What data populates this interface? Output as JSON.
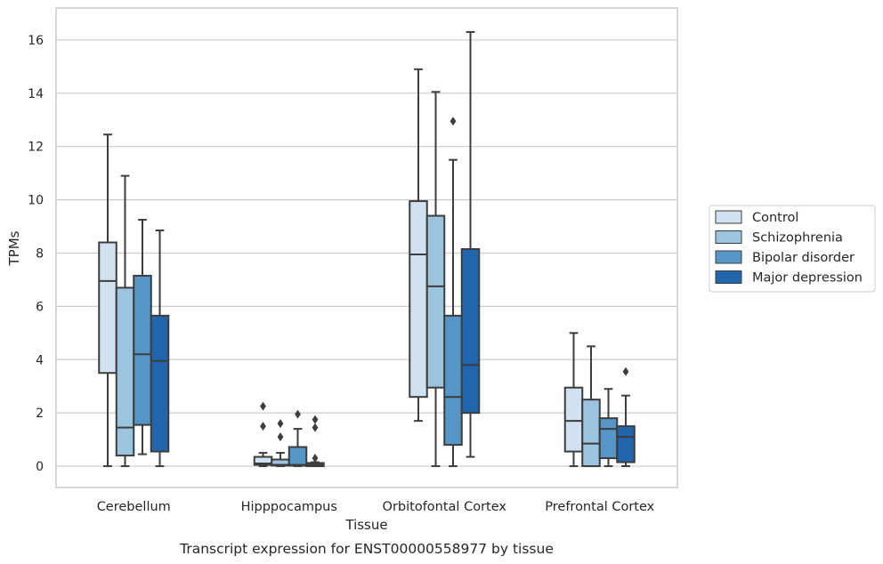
{
  "chart_data": {
    "type": "box",
    "caption": "Transcript expression for ENST00000558977 by tissue",
    "xlabel": "Tissue",
    "ylabel": "TPMs",
    "ylim": [
      -0.8,
      17.2
    ],
    "yticks": [
      0,
      2,
      4,
      6,
      8,
      10,
      12,
      14,
      16
    ],
    "grid": "horizontal",
    "legend_position": "right",
    "categories": [
      "Cerebellum",
      "Hipppocampus",
      "Orbitofontal Cortex",
      "Prefrontal Cortex"
    ],
    "series": [
      {
        "name": "Control",
        "color": "#d1e1f0",
        "boxes": [
          {
            "whislo": 0,
            "q1": 3.5,
            "median": 6.95,
            "q3": 8.4,
            "whishi": 12.45,
            "outliers": []
          },
          {
            "whislo": 0,
            "q1": 0.05,
            "median": 0.1,
            "q3": 0.35,
            "whishi": 0.5,
            "outliers": [
              1.5,
              2.25
            ]
          },
          {
            "whislo": 1.7,
            "q1": 2.6,
            "median": 7.95,
            "q3": 9.95,
            "whishi": 14.9,
            "outliers": []
          },
          {
            "whislo": 0,
            "q1": 0.55,
            "median": 1.7,
            "q3": 2.95,
            "whishi": 5.0,
            "outliers": []
          }
        ]
      },
      {
        "name": "Schizophrenia",
        "color": "#9bc4df",
        "boxes": [
          {
            "whislo": 0,
            "q1": 0.4,
            "median": 1.45,
            "q3": 6.7,
            "whishi": 10.9,
            "outliers": []
          },
          {
            "whislo": 0,
            "q1": 0.02,
            "median": 0.05,
            "q3": 0.25,
            "whishi": 0.5,
            "outliers": [
              1.1,
              1.6
            ]
          },
          {
            "whislo": 0,
            "q1": 2.95,
            "median": 6.75,
            "q3": 9.4,
            "whishi": 14.05,
            "outliers": []
          },
          {
            "whislo": 0,
            "q1": 0,
            "median": 0.85,
            "q3": 2.5,
            "whishi": 4.5,
            "outliers": []
          }
        ]
      },
      {
        "name": "Bipolar disorder",
        "color": "#5596c6",
        "boxes": [
          {
            "whislo": 0.45,
            "q1": 1.55,
            "median": 4.2,
            "q3": 7.15,
            "whishi": 9.25,
            "outliers": []
          },
          {
            "whislo": 0,
            "q1": 0.02,
            "median": 0.05,
            "q3": 0.72,
            "whishi": 1.4,
            "outliers": [
              1.95
            ]
          },
          {
            "whislo": 0,
            "q1": 0.8,
            "median": 2.6,
            "q3": 5.65,
            "whishi": 11.5,
            "outliers": [
              12.95
            ]
          },
          {
            "whislo": 0,
            "q1": 0.3,
            "median": 1.4,
            "q3": 1.8,
            "whishi": 2.9,
            "outliers": []
          }
        ]
      },
      {
        "name": "Major depression",
        "color": "#2166ac",
        "boxes": [
          {
            "whislo": 0,
            "q1": 0.55,
            "median": 3.95,
            "q3": 5.65,
            "whishi": 8.85,
            "outliers": []
          },
          {
            "whislo": 0,
            "q1": 0.0,
            "median": 0.05,
            "q3": 0.12,
            "whishi": 0.15,
            "outliers": [
              0.3,
              1.45,
              1.75
            ]
          },
          {
            "whislo": 0.35,
            "q1": 2.0,
            "median": 3.8,
            "q3": 8.15,
            "whishi": 16.3,
            "outliers": []
          },
          {
            "whislo": 0,
            "q1": 0.15,
            "median": 1.1,
            "q3": 1.5,
            "whishi": 2.65,
            "outliers": [
              3.55
            ]
          }
        ]
      }
    ]
  }
}
